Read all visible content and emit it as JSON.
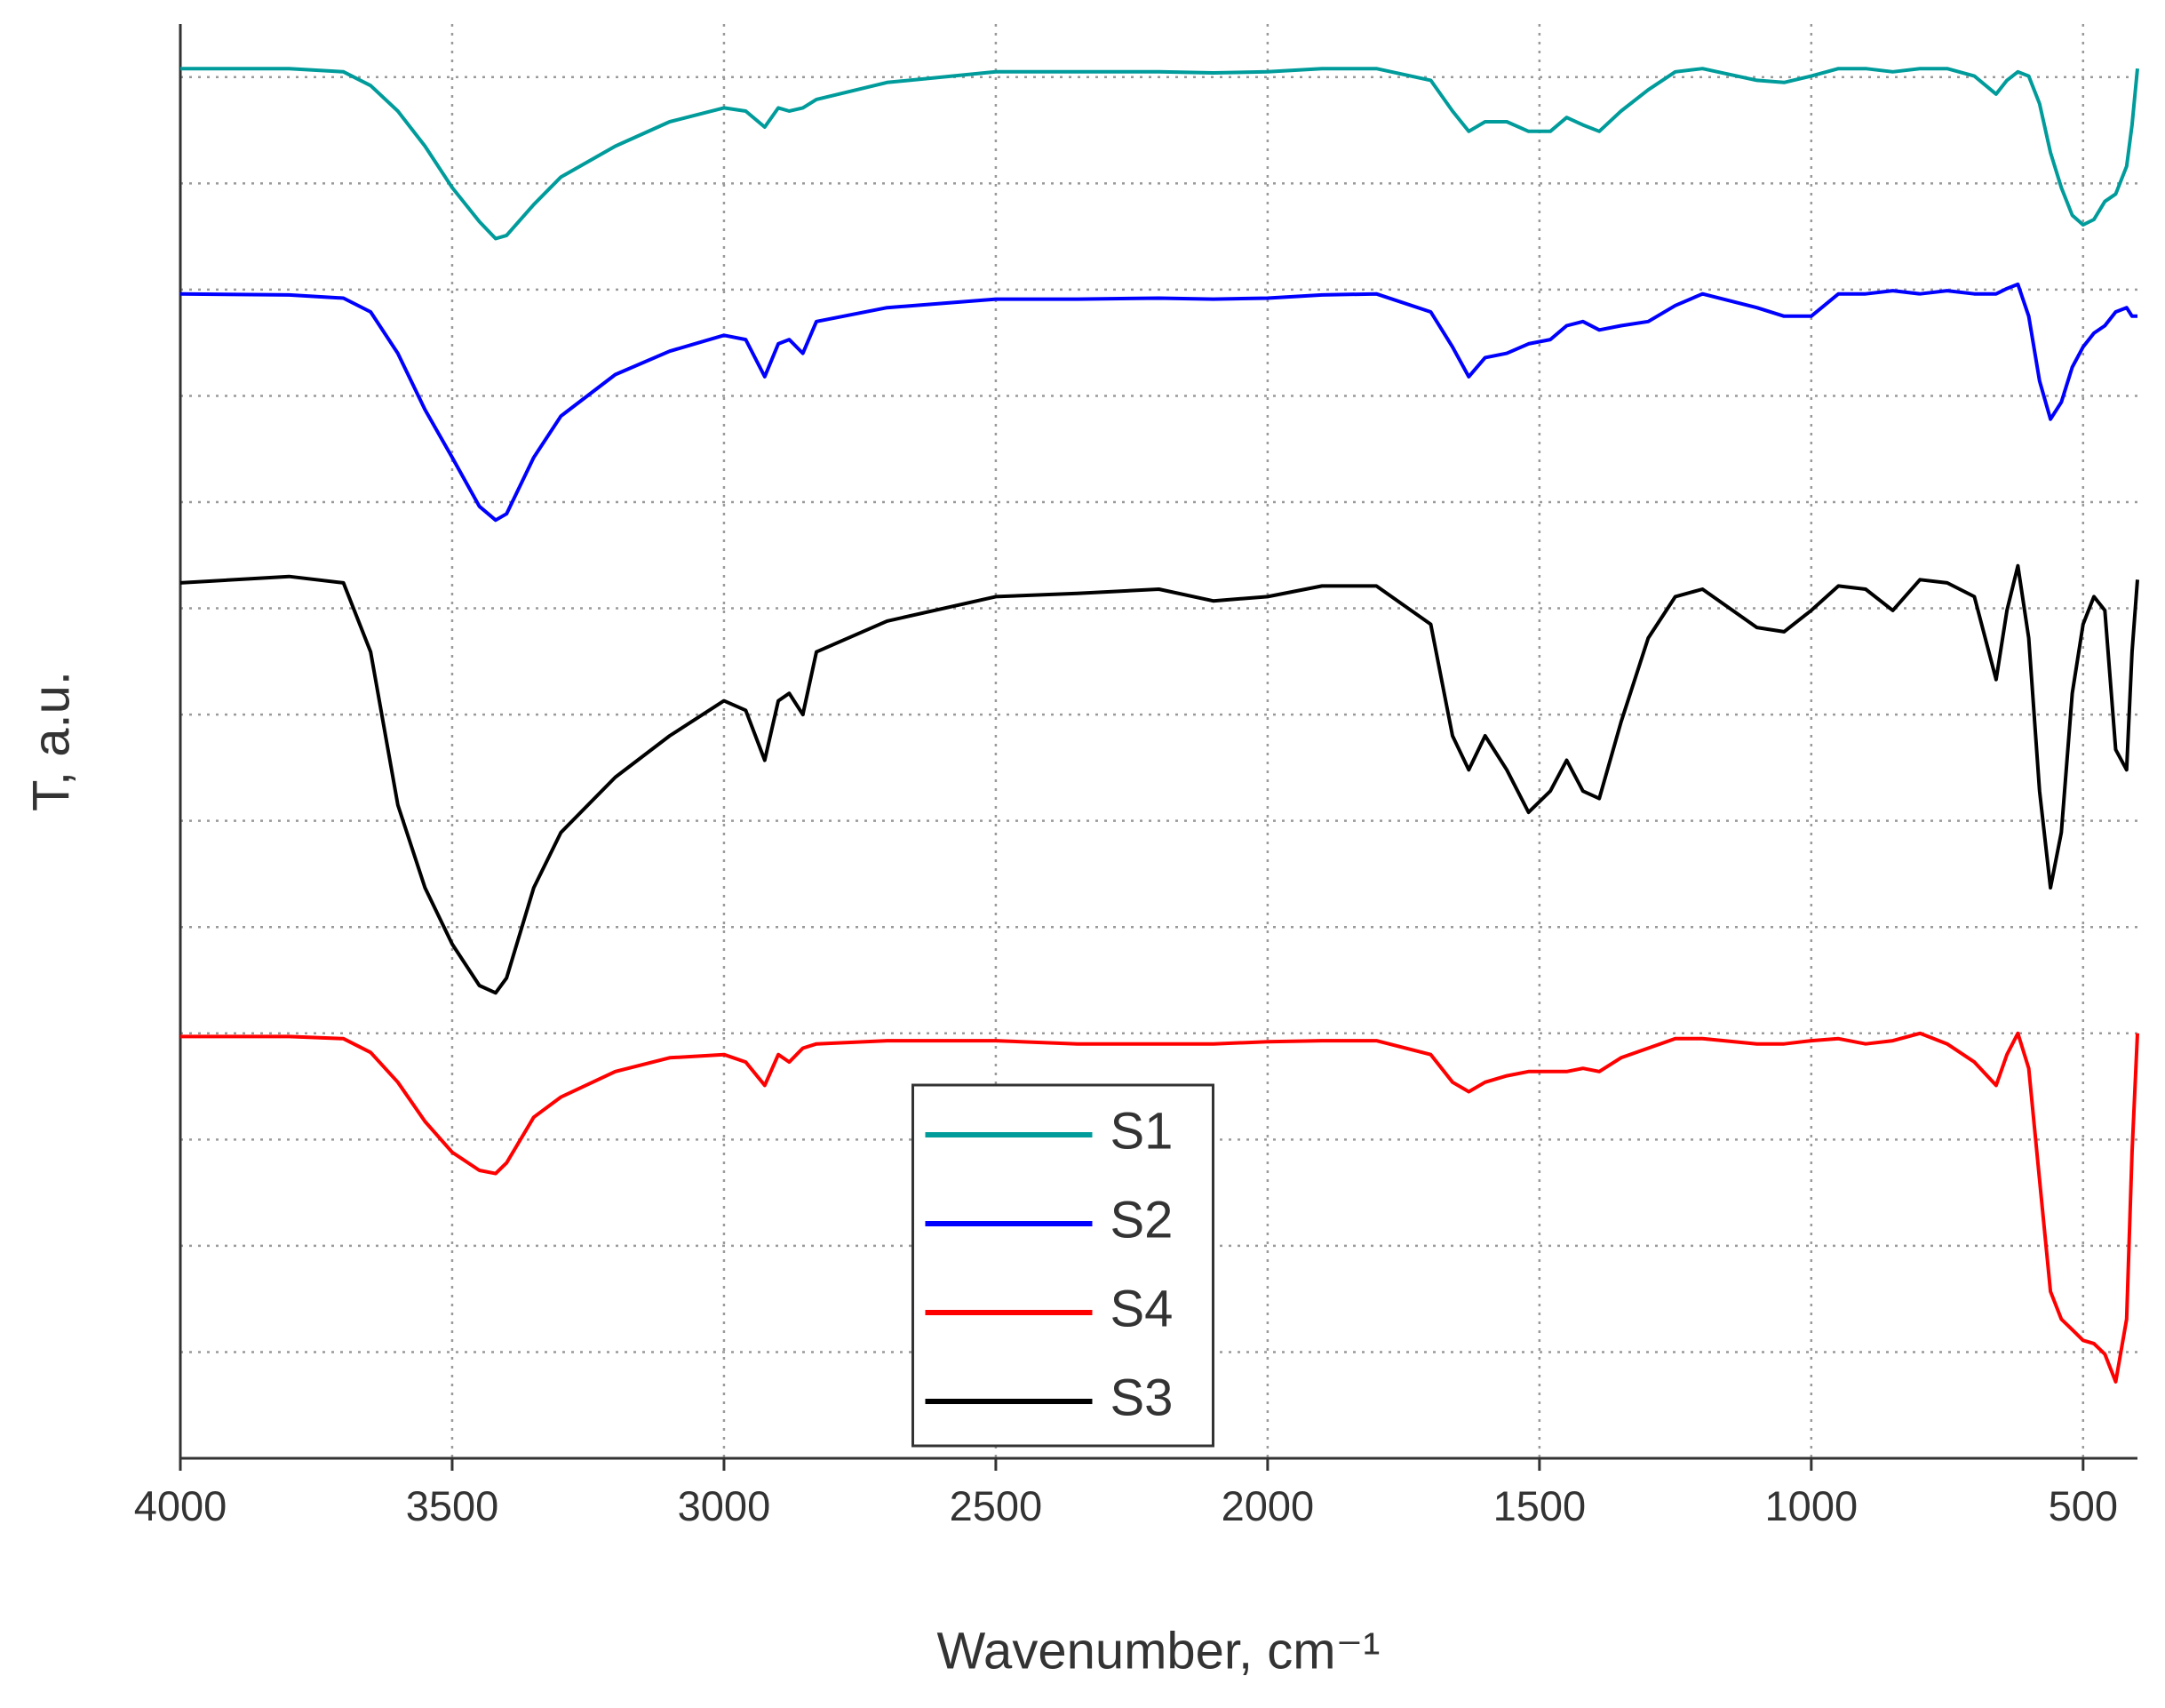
{
  "chart_data": {
    "type": "line",
    "xlabel": "Wavenumber, cm⁻¹",
    "ylabel": "T, a.u.",
    "xlim": [
      4000,
      400
    ],
    "xticks": [
      4000,
      3500,
      3000,
      2500,
      2000,
      1500,
      1000,
      500
    ],
    "ylim": [
      0,
      13.5
    ],
    "yticks": [
      1,
      2,
      3,
      4,
      5,
      6,
      7,
      8,
      9,
      10,
      11,
      12,
      13
    ],
    "grid": true,
    "legend": "lower center",
    "x": [
      4000,
      3800,
      3700,
      3650,
      3600,
      3550,
      3500,
      3450,
      3420,
      3400,
      3350,
      3300,
      3200,
      3100,
      3000,
      2960,
      2925,
      2900,
      2880,
      2855,
      2830,
      2700,
      2500,
      2350,
      2200,
      2100,
      2000,
      1900,
      1800,
      1700,
      1660,
      1630,
      1600,
      1560,
      1520,
      1480,
      1450,
      1420,
      1390,
      1350,
      1300,
      1250,
      1200,
      1100,
      1050,
      1000,
      950,
      900,
      850,
      800,
      750,
      700,
      660,
      640,
      620,
      600,
      580,
      560,
      540,
      520,
      500,
      480,
      460,
      440,
      420,
      410,
      400
    ],
    "series": [
      {
        "name": "S1",
        "color": "#009b9b",
        "values": [
          13.08,
          13.08,
          13.05,
          12.92,
          12.68,
          12.35,
          11.96,
          11.64,
          11.48,
          11.51,
          11.8,
          12.06,
          12.35,
          12.58,
          12.71,
          12.68,
          12.53,
          12.71,
          12.68,
          12.71,
          12.79,
          12.95,
          13.05,
          13.05,
          13.05,
          13.04,
          13.05,
          13.08,
          13.08,
          12.97,
          12.68,
          12.49,
          12.58,
          12.58,
          12.49,
          12.49,
          12.62,
          12.55,
          12.49,
          12.68,
          12.88,
          13.05,
          13.08,
          12.97,
          12.95,
          13.01,
          13.08,
          13.08,
          13.05,
          13.08,
          13.08,
          13.01,
          12.84,
          12.97,
          13.05,
          13.01,
          12.75,
          12.29,
          11.96,
          11.7,
          11.61,
          11.66,
          11.83,
          11.9,
          12.16,
          12.55,
          13.08
        ]
      },
      {
        "name": "S2",
        "color": "#0000ff",
        "values": [
          10.96,
          10.95,
          10.92,
          10.79,
          10.4,
          9.87,
          9.42,
          8.96,
          8.83,
          8.89,
          9.42,
          9.81,
          10.2,
          10.42,
          10.57,
          10.53,
          10.18,
          10.49,
          10.53,
          10.4,
          10.7,
          10.83,
          10.91,
          10.91,
          10.92,
          10.91,
          10.92,
          10.95,
          10.96,
          10.79,
          10.46,
          10.18,
          10.36,
          10.4,
          10.49,
          10.53,
          10.66,
          10.7,
          10.62,
          10.66,
          10.7,
          10.85,
          10.96,
          10.83,
          10.75,
          10.75,
          10.96,
          10.96,
          10.99,
          10.96,
          10.99,
          10.96,
          10.96,
          11.01,
          11.05,
          10.75,
          10.14,
          9.78,
          9.94,
          10.27,
          10.46,
          10.59,
          10.66,
          10.79,
          10.83,
          10.75,
          10.75
        ]
      },
      {
        "name": "S4",
        "color": "#ff0000",
        "values": [
          3.97,
          3.97,
          3.95,
          3.82,
          3.54,
          3.17,
          2.88,
          2.71,
          2.68,
          2.78,
          3.21,
          3.4,
          3.64,
          3.77,
          3.8,
          3.73,
          3.51,
          3.8,
          3.73,
          3.86,
          3.9,
          3.93,
          3.93,
          3.9,
          3.9,
          3.9,
          3.92,
          3.93,
          3.93,
          3.8,
          3.54,
          3.45,
          3.54,
          3.6,
          3.64,
          3.64,
          3.64,
          3.67,
          3.64,
          3.77,
          3.86,
          3.95,
          3.95,
          3.9,
          3.9,
          3.93,
          3.95,
          3.9,
          3.93,
          4.0,
          3.9,
          3.73,
          3.51,
          3.8,
          4.0,
          3.67,
          2.62,
          1.57,
          1.31,
          1.21,
          1.11,
          1.08,
          0.98,
          0.72,
          1.31,
          2.88,
          4.0
        ]
      },
      {
        "name": "S3",
        "color": "#000000",
        "values": [
          8.24,
          8.3,
          8.24,
          7.59,
          6.15,
          5.37,
          4.84,
          4.45,
          4.38,
          4.52,
          5.37,
          5.89,
          6.41,
          6.8,
          7.13,
          7.04,
          6.57,
          7.13,
          7.2,
          7.0,
          7.59,
          7.88,
          8.11,
          8.14,
          8.18,
          8.07,
          8.11,
          8.21,
          8.21,
          7.85,
          6.8,
          6.48,
          6.8,
          6.48,
          6.08,
          6.28,
          6.57,
          6.28,
          6.21,
          6.93,
          7.72,
          8.11,
          8.18,
          7.82,
          7.78,
          7.98,
          8.21,
          8.18,
          7.98,
          8.27,
          8.24,
          8.11,
          7.33,
          7.98,
          8.4,
          7.72,
          6.28,
          5.37,
          5.89,
          7.2,
          7.85,
          8.11,
          7.98,
          6.67,
          6.48,
          7.59,
          8.27
        ]
      }
    ]
  }
}
